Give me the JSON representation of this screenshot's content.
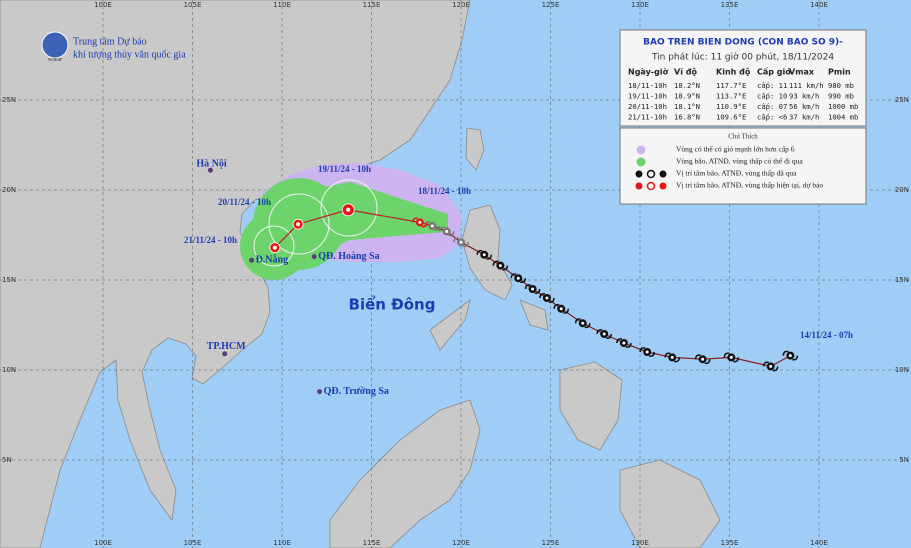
{
  "header": {
    "org_line1": "Trung tâm Dự báo",
    "org_line2": "khí tượng thủy văn quốc gia",
    "logo": "NCHMF"
  },
  "grid": {
    "lon": [
      {
        "value": 100,
        "label": "100E"
      },
      {
        "value": 105,
        "label": "105E"
      },
      {
        "value": 110,
        "label": "110E"
      },
      {
        "value": 115,
        "label": "115E"
      },
      {
        "value": 120,
        "label": "120E"
      },
      {
        "value": 125,
        "label": "125E"
      },
      {
        "value": 130,
        "label": "130E"
      },
      {
        "value": 135,
        "label": "135E"
      },
      {
        "value": 140,
        "label": "140E"
      }
    ],
    "lat": [
      {
        "value": 25,
        "label": "25N"
      },
      {
        "value": 20,
        "label": "20N"
      },
      {
        "value": 15,
        "label": "15N"
      },
      {
        "value": 10,
        "label": "10N"
      },
      {
        "value": 5,
        "label": "5N"
      }
    ]
  },
  "info": {
    "title": "BAO TREN BIEN DONG (CON BAO SO 9)-",
    "issued": "Tin phát lúc: 11 giờ 00 phút, 18/11/2024",
    "columns": [
      "Ngày-giờ",
      "Vĩ độ",
      "Kinh độ",
      "Cấp gió",
      "Vmax",
      "Pmin"
    ],
    "rows": [
      {
        "time": "18/11-10h",
        "lat": {
          "value": 18.2,
          "label": "18.2°N"
        },
        "lon": {
          "value": 117.7,
          "label": "117.7°E"
        },
        "level": "cấp: 11",
        "vmax": "111 km/h",
        "pmin": "980 mb"
      },
      {
        "time": "19/11-10h",
        "lat": {
          "value": 18.9,
          "label": "18.9°N"
        },
        "lon": {
          "value": 113.7,
          "label": "113.7°E"
        },
        "level": "cấp: 10",
        "vmax": "93 km/h",
        "pmin": "990 mb"
      },
      {
        "time": "20/11-10h",
        "lat": {
          "value": 18.1,
          "label": "18.1°N"
        },
        "lon": {
          "value": 110.9,
          "label": "110.9°E"
        },
        "level": "cấp: 07",
        "vmax": "56 km/h",
        "pmin": "1000 mb"
      },
      {
        "time": "21/11-10h",
        "lat": {
          "value": 16.8,
          "label": "16.8°N"
        },
        "lon": {
          "value": 109.6,
          "label": "109.6°E"
        },
        "level": "cấp: <6",
        "vmax": "37 km/h",
        "pmin": "1004 mb"
      }
    ]
  },
  "legend": {
    "title": "Chú Thích",
    "items": [
      "Vùng có thể có gió mạnh lớn hơn cấp 6",
      "Vùng bão, ATNĐ, vùng thấp có thể đi qua",
      "Vị trí tâm bão, ATNĐ, vùng thấp đã qua",
      "Vị trí tâm bão, ATNĐ, vùng thấp hiện tại, dự báo"
    ]
  },
  "places": [
    {
      "label": "Hà Nội",
      "lat": 21.1,
      "lon": 106.0
    },
    {
      "label": "Đ.Nẵng",
      "lat": 16.1,
      "lon": 108.3
    },
    {
      "label": "TP.HCM",
      "lat": 10.9,
      "lon": 106.8
    },
    {
      "label": "QĐ. Hoàng Sa",
      "lat": 16.3,
      "lon": 111.8
    },
    {
      "label": "QĐ. Trường Sa",
      "lat": 8.8,
      "lon": 112.1
    }
  ],
  "sea_label": "Biển Đông",
  "track_labels": [
    "14/11/24 - 07h",
    "18/11/24 - 10h",
    "19/11/24 - 10h",
    "20/11/24 - 10h",
    "21/11/24 - 10h"
  ],
  "past_track": [
    {
      "lat": 10.8,
      "lon": 138.4
    },
    {
      "lat": 10.2,
      "lon": 137.3
    },
    {
      "lat": 10.7,
      "lon": 135.1
    },
    {
      "lat": 10.6,
      "lon": 133.5
    },
    {
      "lat": 10.7,
      "lon": 131.8
    },
    {
      "lat": 11.0,
      "lon": 130.4
    },
    {
      "lat": 11.5,
      "lon": 129.1
    },
    {
      "lat": 12.0,
      "lon": 128.0
    },
    {
      "lat": 12.6,
      "lon": 126.8
    },
    {
      "lat": 13.4,
      "lon": 125.6
    },
    {
      "lat": 14.0,
      "lon": 124.8
    },
    {
      "lat": 14.5,
      "lon": 124.0
    },
    {
      "lat": 15.1,
      "lon": 123.2
    },
    {
      "lat": 15.8,
      "lon": 122.2
    },
    {
      "lat": 16.4,
      "lon": 121.3
    },
    {
      "lat": 17.1,
      "lon": 120.0
    },
    {
      "lat": 17.7,
      "lon": 119.2
    },
    {
      "lat": 18.0,
      "lon": 118.4
    }
  ]
}
